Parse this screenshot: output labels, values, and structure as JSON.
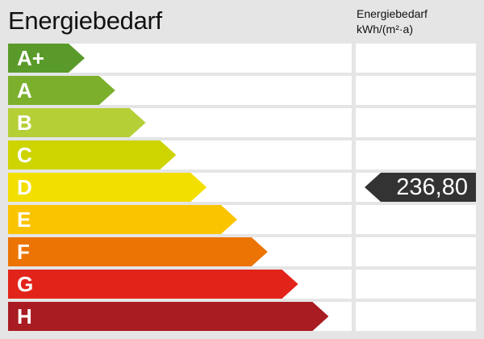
{
  "title": "Energiebedarf",
  "column_header": {
    "line1": "Energiebedarf",
    "line2": "kWh/(m²·a)"
  },
  "classes": [
    {
      "label": "A+",
      "color": "#5a9a2a"
    },
    {
      "label": "A",
      "color": "#7cb02c"
    },
    {
      "label": "B",
      "color": "#b5cf37"
    },
    {
      "label": "C",
      "color": "#cdd400"
    },
    {
      "label": "D",
      "color": "#f2df00"
    },
    {
      "label": "E",
      "color": "#fbc400"
    },
    {
      "label": "F",
      "color": "#ec7404"
    },
    {
      "label": "G",
      "color": "#e2231a"
    },
    {
      "label": "H",
      "color": "#a81c22"
    }
  ],
  "marker": {
    "value": "236,80",
    "class": "D",
    "color": "#333333"
  }
}
